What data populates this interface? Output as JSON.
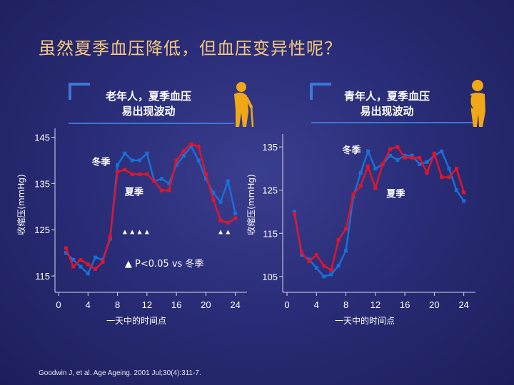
{
  "title": "虽然夏季血压降低，但血压变异性呢？",
  "citation": "Goodwin J, et al. Age Ageing. 2001 Jul;30(4):311-7.",
  "colors": {
    "winter": "#1a6fd6",
    "summer": "#e0152a",
    "accent": "#3b78d8",
    "title": "#f5c77e",
    "person": "#f0a818"
  },
  "chart_data": [
    {
      "type": "line",
      "header": [
        "老年人，夏季血压",
        "易出现波动"
      ],
      "icon": "elderly-person-with-cane-icon",
      "xlabel": "一天中的时间点",
      "ylabel": "收缩压(mmHg)",
      "xlim": [
        0,
        25
      ],
      "ylim": [
        113,
        146
      ],
      "xticks": [
        0,
        4,
        8,
        12,
        16,
        20,
        24
      ],
      "yticks": [
        115,
        125,
        135,
        145
      ],
      "series": [
        {
          "name": "冬季",
          "color": "#1a6fd6",
          "x": [
            1,
            2,
            3,
            4,
            5,
            6,
            7,
            8,
            9,
            10,
            11,
            12,
            13,
            14,
            15,
            16,
            17,
            18,
            19,
            20,
            21,
            22,
            23,
            24
          ],
          "y": [
            120,
            118.5,
            117,
            115.5,
            119,
            118.5,
            123,
            139,
            141.5,
            140,
            140,
            141.5,
            135.5,
            136,
            135,
            139,
            141,
            143,
            140,
            136,
            133,
            131,
            135.5,
            128.5
          ]
        },
        {
          "name": "夏季",
          "color": "#e0152a",
          "x": [
            1,
            2,
            3,
            4,
            5,
            6,
            7,
            8,
            9,
            10,
            11,
            12,
            13,
            14,
            15,
            16,
            17,
            18,
            19,
            20,
            21,
            22,
            23,
            24
          ],
          "y": [
            121,
            117,
            118.5,
            117.5,
            116.5,
            118,
            123.5,
            137.5,
            138,
            137,
            137,
            137,
            135.5,
            133.5,
            133.5,
            140,
            142,
            143.5,
            143,
            137,
            131.5,
            127,
            126.5,
            127.5
          ]
        }
      ],
      "annotations": [
        {
          "text": "冬季",
          "x": 4.5,
          "y": 139
        },
        {
          "text": "夏季",
          "x": 9,
          "y": 132.5
        },
        {
          "text": "▲ P<0.05  vs 冬季",
          "x": 9,
          "y": 117
        }
      ],
      "significance_marks": [
        9,
        10,
        11,
        12,
        22,
        23
      ],
      "significance_y": 124.5
    },
    {
      "type": "line",
      "header": [
        "青年人，夏季血压",
        "易出现波动"
      ],
      "icon": "young-person-icon",
      "xlabel": "一天中的时间点",
      "ylabel": "收缩压(mmHg)",
      "xlim": [
        0,
        25
      ],
      "ylim": [
        103,
        137
      ],
      "xticks": [
        0,
        4,
        8,
        12,
        16,
        20,
        24
      ],
      "yticks": [
        105,
        115,
        125,
        135
      ],
      "series": [
        {
          "name": "冬季",
          "color": "#1a6fd6",
          "x": [
            1,
            2,
            3,
            4,
            5,
            6,
            7,
            8,
            9,
            10,
            11,
            12,
            13,
            14,
            15,
            16,
            17,
            18,
            19,
            20,
            21,
            22,
            23,
            24
          ],
          "y": [
            120,
            110,
            109,
            107,
            105,
            105.5,
            107.5,
            111,
            123.5,
            129,
            134,
            130,
            131,
            133,
            132,
            133,
            133,
            131,
            131.5,
            133,
            134,
            130,
            125,
            122.5
          ],
          "marker": "square"
        },
        {
          "name": "夏季",
          "color": "#e0152a",
          "x": [
            1,
            2,
            3,
            4,
            5,
            6,
            7,
            8,
            9,
            10,
            11,
            12,
            13,
            14,
            15,
            16,
            17,
            18,
            19,
            20,
            21,
            22,
            23,
            24
          ],
          "y": [
            119.5,
            110.5,
            108.5,
            110,
            107.5,
            106.5,
            113.5,
            116,
            124,
            126,
            130.5,
            125.5,
            131,
            134.5,
            135,
            132.5,
            132.5,
            132.5,
            129,
            133.5,
            128,
            128,
            130,
            124.5
          ],
          "marker": "square"
        }
      ],
      "annotations": [
        {
          "text": "冬季",
          "x": 7.5,
          "y": 133.5
        },
        {
          "text": "夏季",
          "x": 13.5,
          "y": 123.5
        }
      ]
    }
  ]
}
